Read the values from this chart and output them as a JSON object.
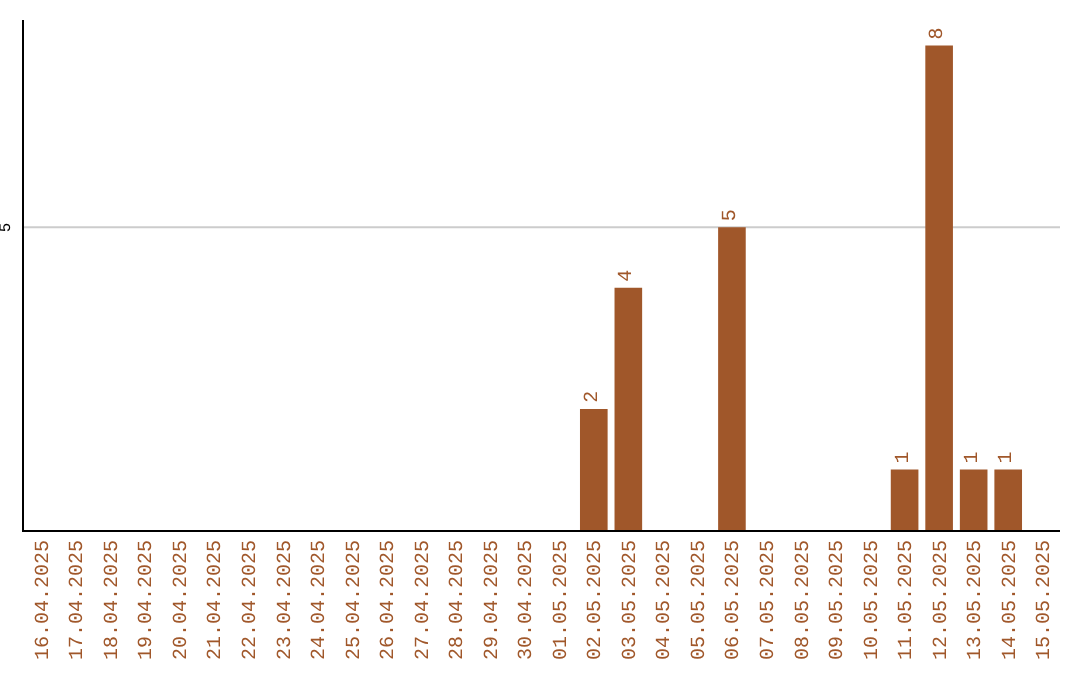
{
  "chart_data": {
    "type": "bar",
    "categories": [
      "16.04.2025",
      "17.04.2025",
      "18.04.2025",
      "19.04.2025",
      "20.04.2025",
      "21.04.2025",
      "22.04.2025",
      "23.04.2025",
      "24.04.2025",
      "25.04.2025",
      "26.04.2025",
      "27.04.2025",
      "28.04.2025",
      "29.04.2025",
      "30.04.2025",
      "01.05.2025",
      "02.05.2025",
      "03.05.2025",
      "04.05.2025",
      "05.05.2025",
      "06.05.2025",
      "07.05.2025",
      "08.05.2025",
      "09.05.2025",
      "10.05.2025",
      "11.05.2025",
      "12.05.2025",
      "13.05.2025",
      "14.05.2025",
      "15.05.2025"
    ],
    "values": [
      null,
      null,
      null,
      null,
      null,
      null,
      null,
      null,
      null,
      null,
      null,
      null,
      null,
      null,
      null,
      null,
      2,
      4,
      null,
      null,
      5,
      null,
      null,
      null,
      null,
      1,
      8,
      1,
      1,
      null
    ],
    "data_labels": true,
    "color": "#a0572a",
    "ref_lines": [
      {
        "axis": "y",
        "value": 5,
        "label": "5",
        "color": "#cccccc"
      }
    ],
    "legend": false
  }
}
